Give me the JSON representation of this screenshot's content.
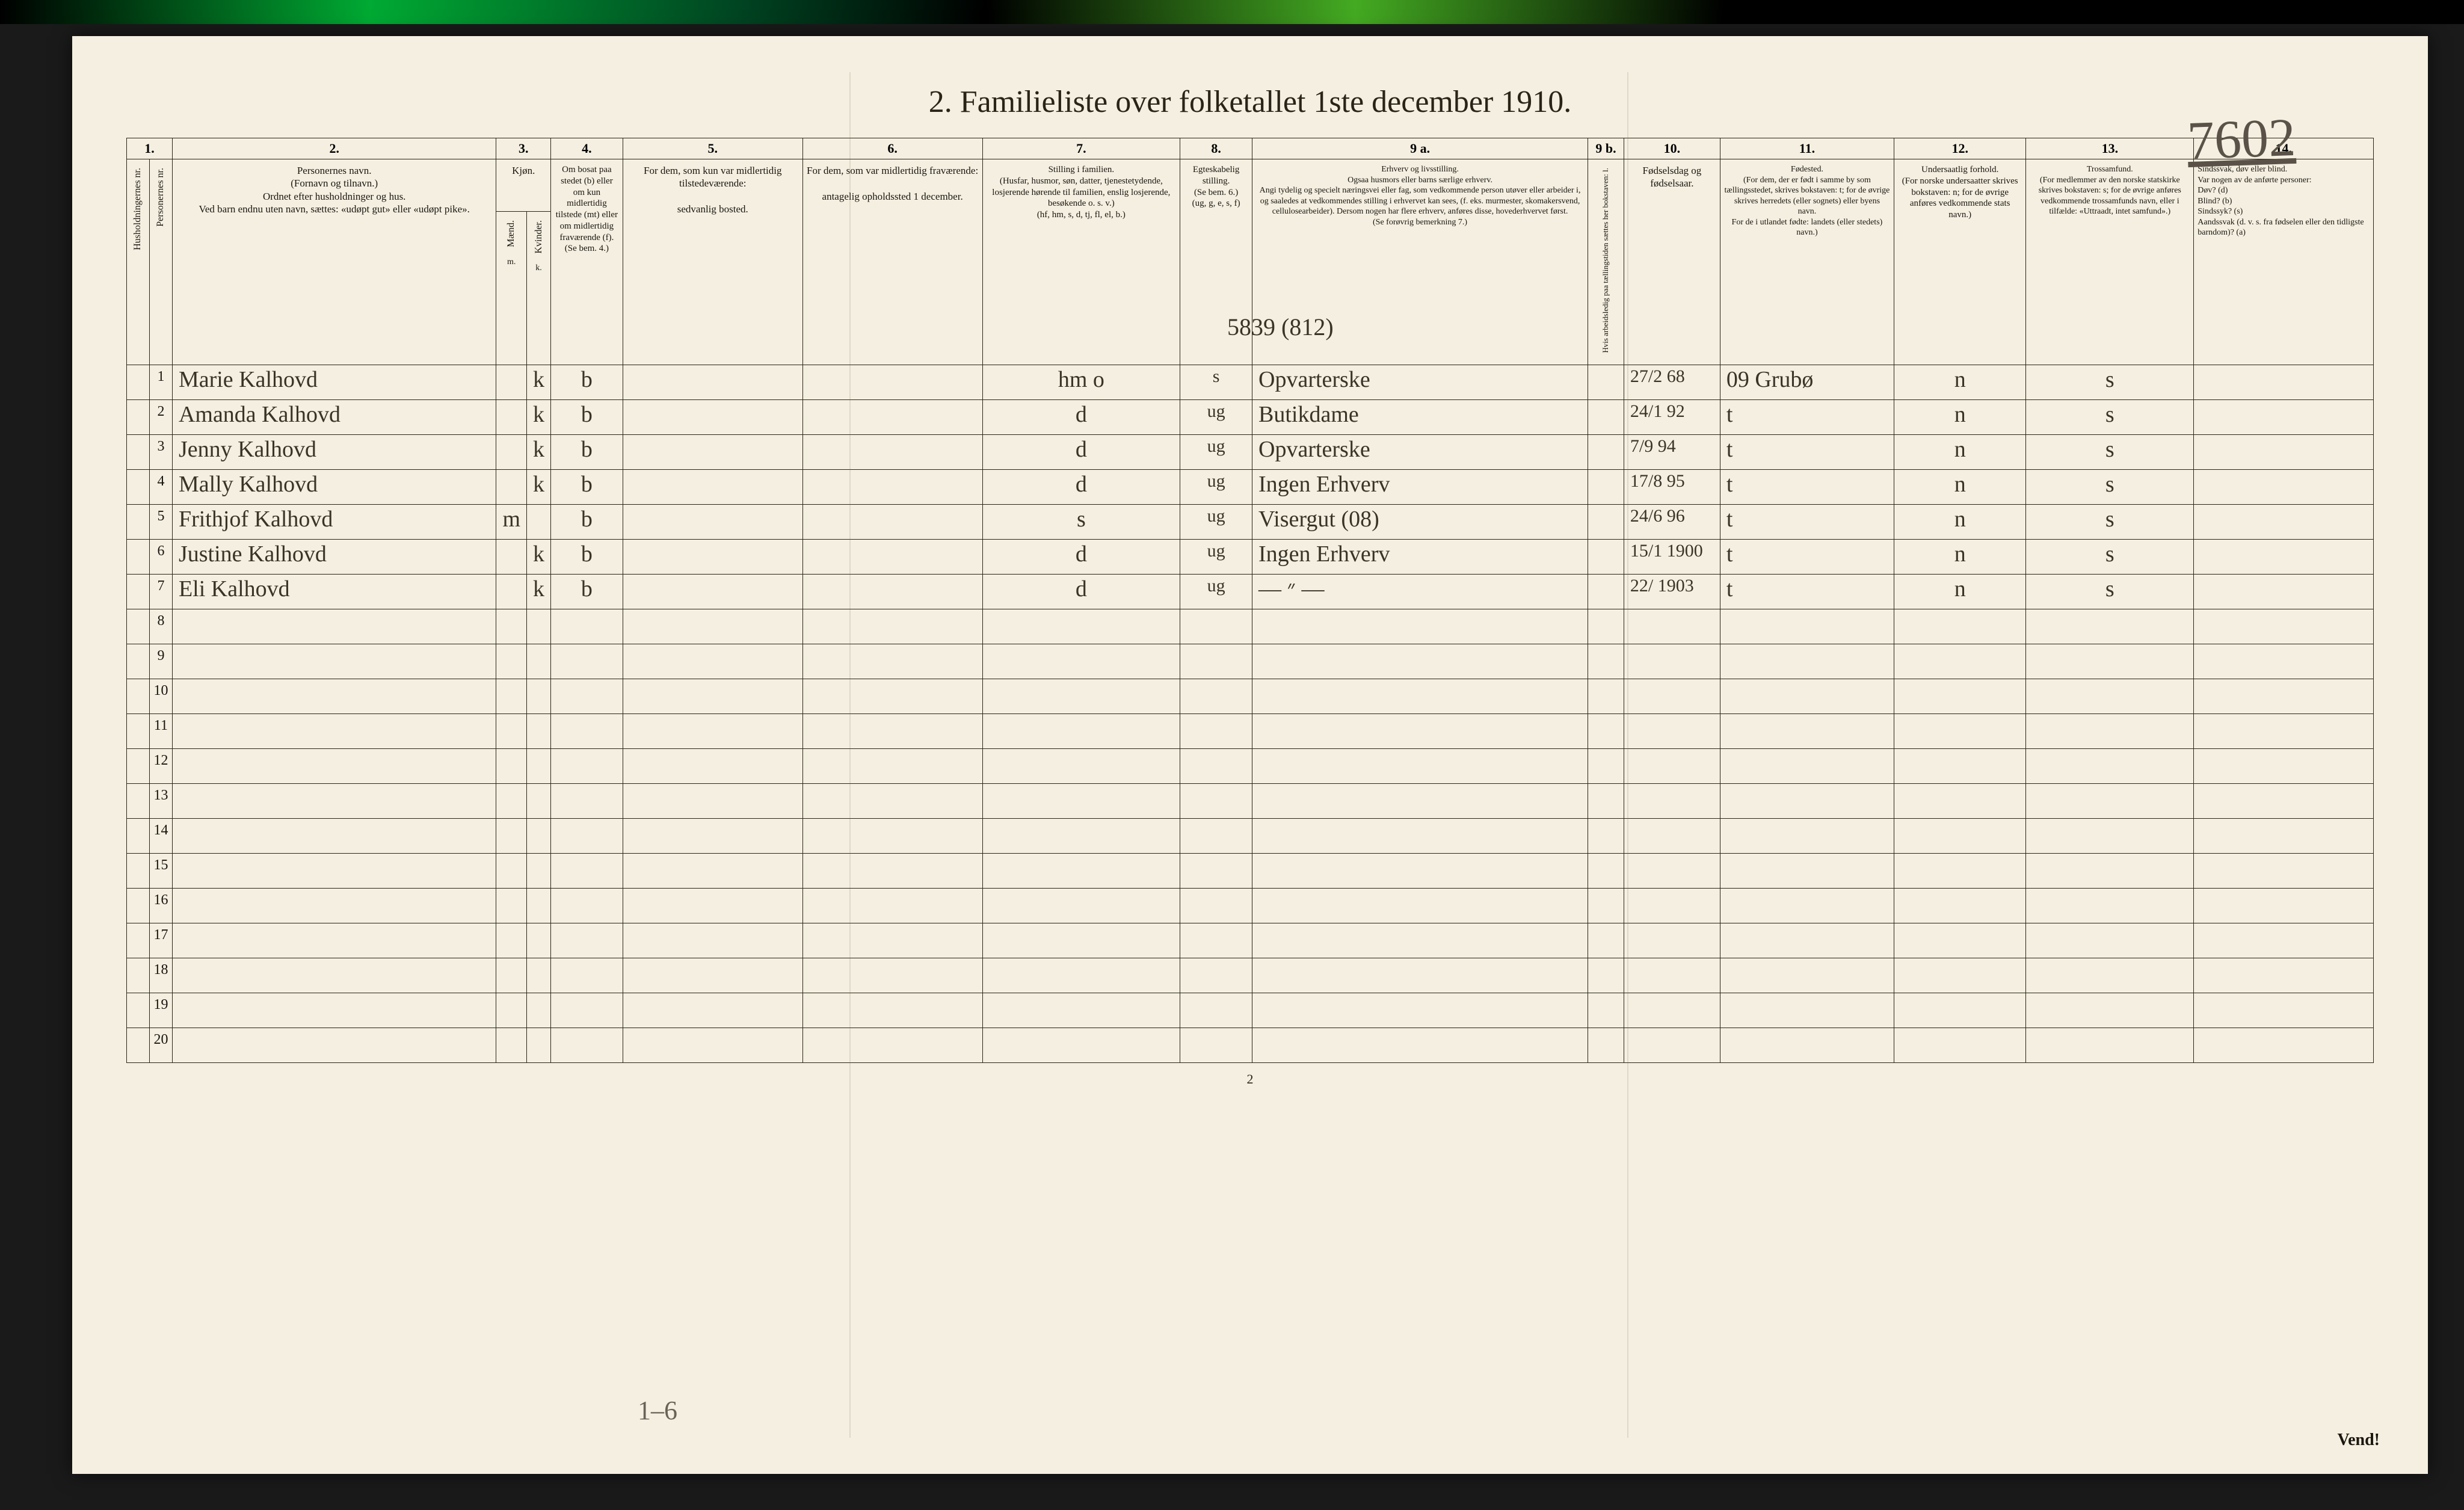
{
  "handwritten_topright": "7602",
  "title": "2.  Familieliste over folketallet 1ste december 1910.",
  "col_numbers": [
    "1.",
    "2.",
    "3.",
    "4.",
    "5.",
    "6.",
    "7.",
    "8.",
    "9 a.",
    "9 b.",
    "10.",
    "11.",
    "12.",
    "13.",
    "14."
  ],
  "headers": {
    "h1a": "Husholdningernes nr.",
    "h1b": "Personernes nr.",
    "h2": "Personernes navn.\n(Fornavn og tilnavn.)\nOrdnet efter husholdninger og hus.\nVed barn endnu uten navn, sættes: «udøpt gut» eller «udøpt pike».",
    "h3": "Kjøn.",
    "h3a": "Mænd.",
    "h3b": "Kvinder.",
    "h3c": "m. k.",
    "h4": "Om bosat paa stedet (b) eller om kun midlertidig tilstede (mt) eller om midlertidig fraværende (f).\n(Se bem. 4.)",
    "h5": "For dem, som kun var midlertidig tilstedeværende:\n\nsedvanlig bosted.",
    "h6": "For dem, som var midlertidig fraværende:\n\nantagelig opholdssted 1 december.",
    "h7": "Stilling i familien.\n(Husfar, husmor, søn, datter, tjenestetydende, losjerende hørende til familien, enslig losjerende, besøkende o. s. v.)\n(hf, hm, s, d, tj, fl, el, b.)",
    "h8": "Egteskabelig stilling.\n(Se bem. 6.)\n(ug, g, e, s, f)",
    "h9a": "Erhverv og livsstilling.\nOgsaa husmors eller barns særlige erhverv.\nAngi tydelig og specielt næringsvei eller fag, som vedkommende person utøver eller arbeider i, og saaledes at vedkommendes stilling i erhvervet kan sees, (f. eks. murmester, skomakersvend, cellulosearbeider). Dersom nogen har flere erhverv, anføres disse, hovederhvervet først.\n(Se forøvrig bemerkning 7.)",
    "h9b": "Hvis arbeidsledig paa tællingstiden sættes her bokstaven: l.",
    "h10": "Fødselsdag og fødselsaar.",
    "h11": "Fødested.\n(For dem, der er født i samme by som tællingsstedet, skrives bokstaven: t; for de øvrige skrives herredets (eller sognets) eller byens navn.\nFor de i utlandet fødte: landets (eller stedets) navn.)",
    "h12": "Undersaatlig forhold.\n(For norske undersaatter skrives bokstaven: n; for de øvrige anføres vedkommende stats navn.)",
    "h13": "Trossamfund.\n(For medlemmer av den norske statskirke skrives bokstaven: s; for de øvrige anføres vedkommende trossamfunds navn, eller i tilfælde: «Uttraadt, intet samfund».)",
    "h14": "Sindssvak, døv eller blind.\nVar nogen av de anførte personer:\nDøv?       (d)\nBlind?     (b)\nSindssyk? (s)\nAandssvak (d. v. s. fra fødselen eller den tidligste barndom)? (a)"
  },
  "annotation_above_row1": "5839  (812)",
  "rows": [
    {
      "n": "1",
      "name": "Marie Kalhovd",
      "mk": "k",
      "bmt": "b",
      "c5": "",
      "c6": "",
      "c7": "hm    o",
      "c8": "s",
      "c9a": "Opvarterske",
      "c9b": "",
      "c10": "27/2 68",
      "c11": "09 Grubø",
      "c12": "n",
      "c13": "s",
      "c14": ""
    },
    {
      "n": "2",
      "name": "Amanda Kalhovd",
      "mk": "k",
      "bmt": "b",
      "c5": "",
      "c6": "",
      "c7": "d",
      "c8": "ug",
      "c9a": "Butikdame",
      "c9b": "",
      "c10": "24/1 92",
      "c11": "t",
      "c12": "n",
      "c13": "s",
      "c14": ""
    },
    {
      "n": "3",
      "name": "Jenny Kalhovd",
      "mk": "k",
      "bmt": "b",
      "c5": "",
      "c6": "",
      "c7": "d",
      "c8": "ug",
      "c9a": "Opvarterske",
      "c9b": "",
      "c10": "7/9 94",
      "c11": "t",
      "c12": "n",
      "c13": "s",
      "c14": ""
    },
    {
      "n": "4",
      "name": "Mally Kalhovd",
      "mk": "k",
      "bmt": "b",
      "c5": "",
      "c6": "",
      "c7": "d",
      "c8": "ug",
      "c9a": "Ingen Erhverv",
      "c9b": "",
      "c10": "17/8 95",
      "c11": "t",
      "c12": "n",
      "c13": "s",
      "c14": ""
    },
    {
      "n": "5",
      "name": "Frithjof Kalhovd",
      "mk": "m",
      "bmt": "b",
      "c5": "",
      "c6": "",
      "c7": "s",
      "c8": "ug",
      "c9a": "Visergut    (08)",
      "c9b": "",
      "c10": "24/6 96",
      "c11": "t",
      "c12": "n",
      "c13": "s",
      "c14": ""
    },
    {
      "n": "6",
      "name": "Justine Kalhovd",
      "mk": "k",
      "bmt": "b",
      "c5": "",
      "c6": "",
      "c7": "d",
      "c8": "ug",
      "c9a": "Ingen Erhverv",
      "c9b": "",
      "c10": "15/1 1900",
      "c11": "t",
      "c12": "n",
      "c13": "s",
      "c14": ""
    },
    {
      "n": "7",
      "name": "Eli Kalhovd",
      "mk": "k",
      "bmt": "b",
      "c5": "",
      "c6": "",
      "c7": "d",
      "c8": "ug",
      "c9a": "—  ״  —",
      "c9b": "",
      "c10": "22/ 1903",
      "c11": "t",
      "c12": "n",
      "c13": "s",
      "c14": ""
    }
  ],
  "empty_rows": [
    "8",
    "9",
    "10",
    "11",
    "12",
    "13",
    "14",
    "15",
    "16",
    "17",
    "18",
    "19",
    "20"
  ],
  "footer_pagenum": "2",
  "vend": "Vend!",
  "handwritten_bottom": "1–6",
  "colwidths": {
    "c1a": 36,
    "c1b": 36,
    "c2": 540,
    "c3a": 34,
    "c3b": 34,
    "c4": 120,
    "c5": 300,
    "c6": 300,
    "c7": 330,
    "c8": 120,
    "c9a": 560,
    "c9b": 60,
    "c10": 160,
    "c11": 290,
    "c12": 220,
    "c13": 280,
    "c14": 300
  },
  "colors": {
    "paper": "#f4efe0",
    "ink": "#1a1610",
    "hand": "#3a3428",
    "border": "#2a2418"
  }
}
